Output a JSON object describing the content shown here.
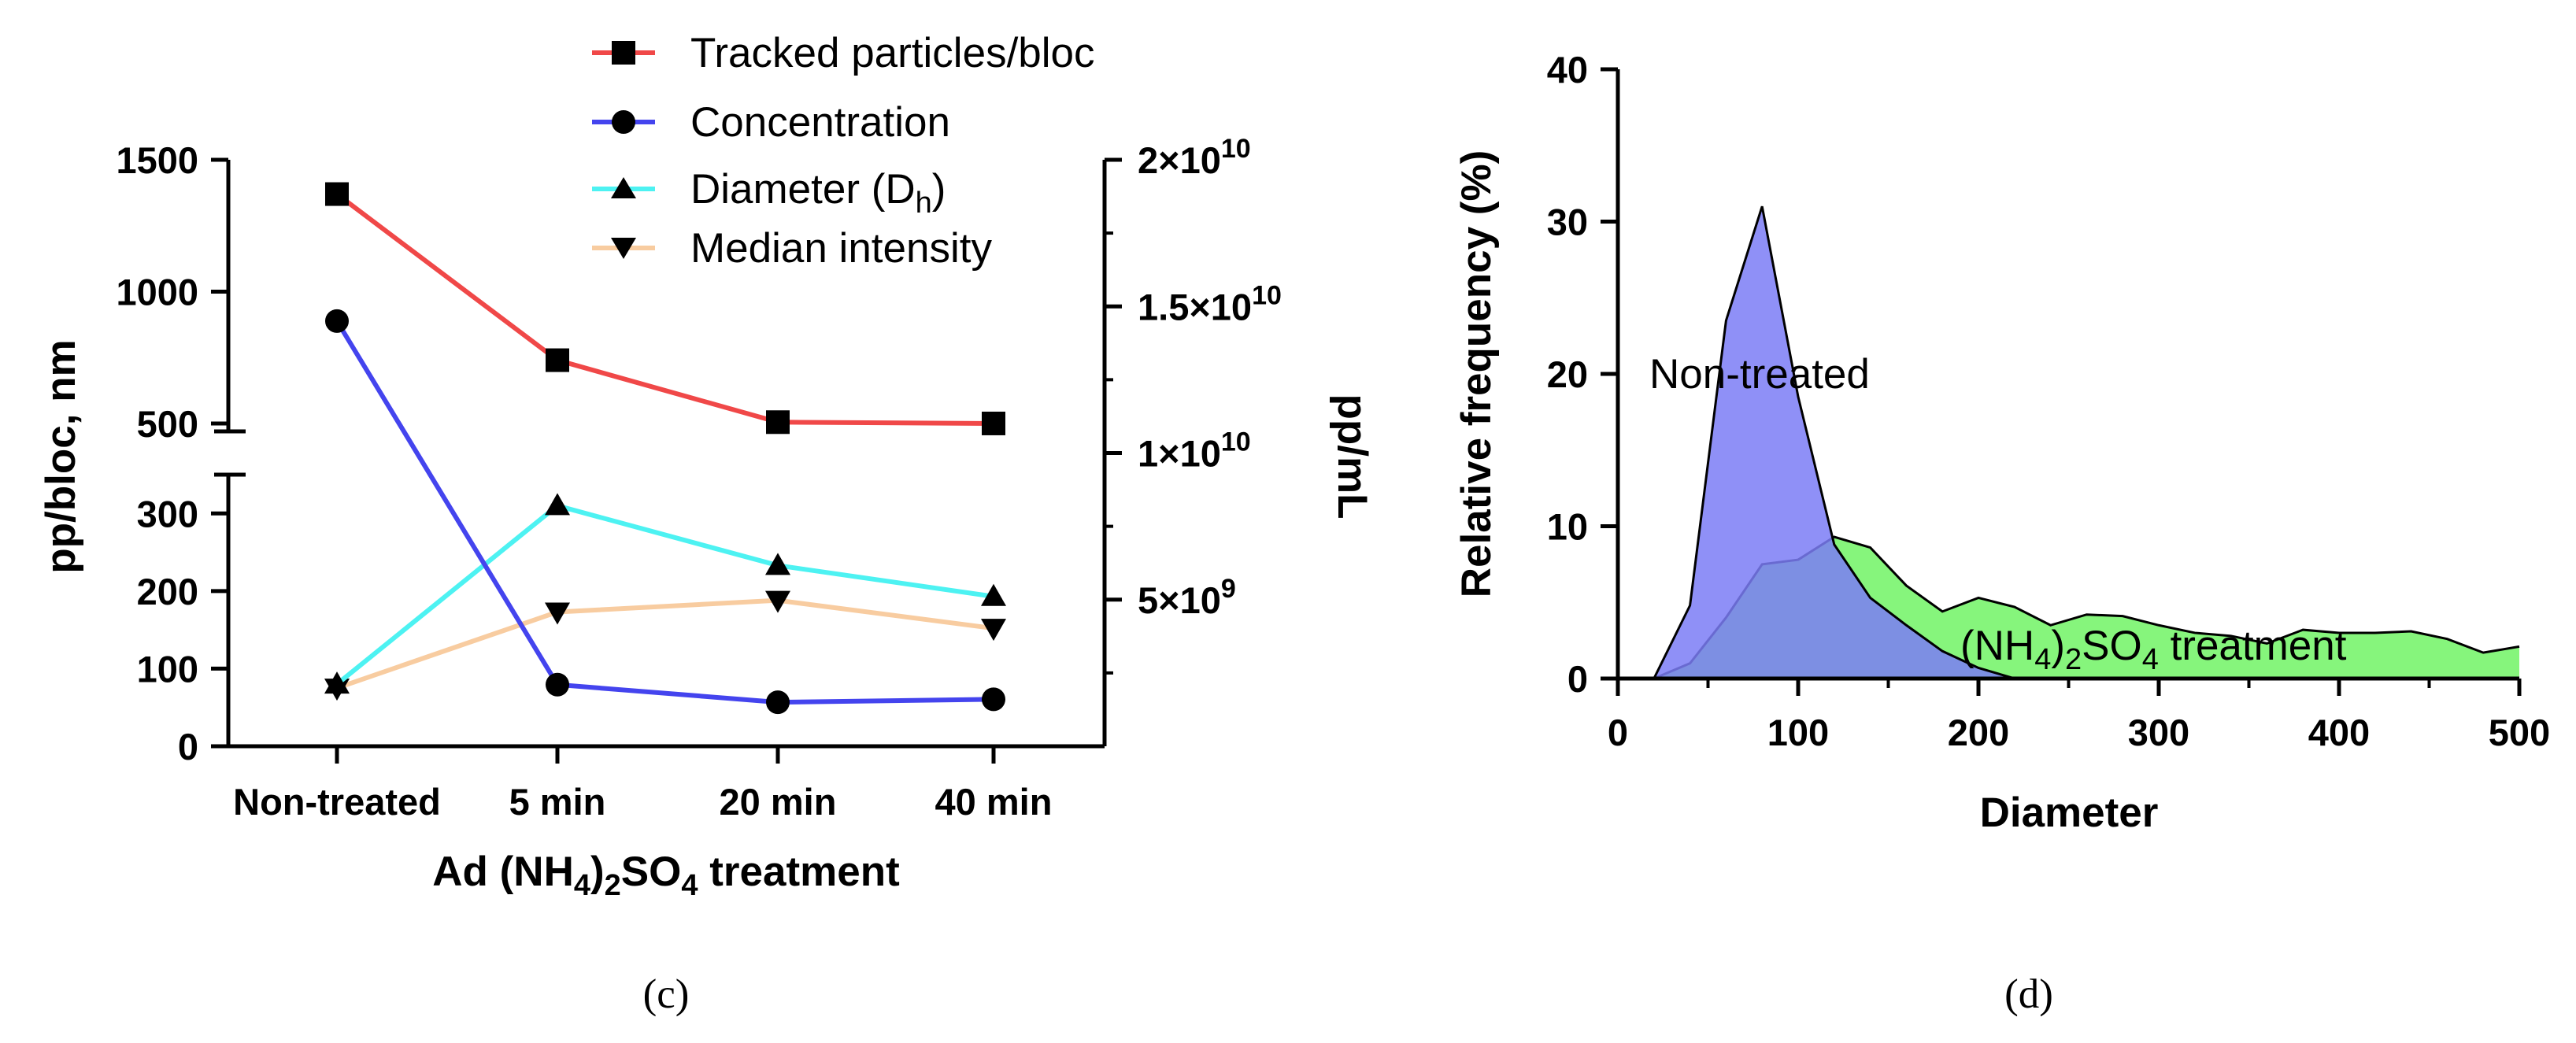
{
  "chart_data": [
    {
      "type": "line",
      "panel": "(c)",
      "categories": [
        "Non-treated",
        "5 min",
        "20 min",
        "40 min"
      ],
      "xlabel": "Ad (NH4)2SO4 treatment",
      "ylabel_left": "pp/bloc, nm",
      "ylabel_right": "pp/mL",
      "left_axis": {
        "broken": true,
        "lower_range": [
          0,
          350
        ],
        "lower_ticks": [
          "0",
          "100",
          "200",
          "300"
        ],
        "upper_range": [
          470,
          1500
        ],
        "upper_ticks": [
          "500",
          "1000",
          "1500"
        ]
      },
      "right_axis": {
        "range": [
          0,
          20000000000
        ],
        "tick_values": [
          5000000000,
          10000000000,
          15000000000,
          20000000000
        ],
        "tick_bases": [
          "5×10",
          "1×10",
          "1.5×10",
          "2×10"
        ],
        "tick_exponents": [
          "9",
          "10",
          "10",
          "10"
        ]
      },
      "series": [
        {
          "name": "Tracked particles/bloc",
          "axis": "left",
          "marker": "square",
          "color": "#f04848",
          "values": [
            1370,
            740,
            505,
            500
          ]
        },
        {
          "name": "Concentration",
          "axis": "right",
          "marker": "circle",
          "color": "#4444ee",
          "values": [
            14500000000,
            2100000000,
            1500000000,
            1600000000
          ]
        },
        {
          "name": "Diameter (Dh)",
          "label_main": "Diameter (D",
          "label_sub": "h",
          "label_end": ")",
          "axis": "left",
          "marker": "triangle-up",
          "color": "#4df2f2",
          "values": [
            80,
            310,
            233,
            193
          ]
        },
        {
          "name": "Median intensity",
          "axis": "left",
          "marker": "triangle-down",
          "color": "#f8cca0",
          "values": [
            75,
            173,
            188,
            152
          ]
        }
      ],
      "xlabel_parts": [
        "Ad (NH",
        "4",
        ")",
        "2",
        "SO",
        "4",
        " treatment"
      ]
    },
    {
      "type": "area",
      "panel": "(d)",
      "xlabel": "Diameter",
      "ylabel": "Relative frequency (%)",
      "xlim": [
        0,
        500
      ],
      "ylim": [
        0,
        40
      ],
      "x_ticks": [
        "0",
        "100",
        "200",
        "300",
        "400",
        "500"
      ],
      "y_ticks": [
        "0",
        "10",
        "20",
        "30",
        "40"
      ],
      "series": [
        {
          "name": "(NH4)2SO4 treatment",
          "color": "#86f57c",
          "x": [
            20,
            40,
            60,
            80,
            100,
            120,
            140,
            160,
            180,
            200,
            220,
            240,
            260,
            280,
            300,
            320,
            340,
            360,
            380,
            400,
            420,
            440,
            460,
            480,
            500
          ],
          "y": [
            0,
            1,
            4,
            7.5,
            7.8,
            9.3,
            8.6,
            6.1,
            4.4,
            5.3,
            4.7,
            3.5,
            4.2,
            4.1,
            3.5,
            3.0,
            2.8,
            2.3,
            3.2,
            3.0,
            3.0,
            3.1,
            2.6,
            1.7,
            2.1
          ]
        },
        {
          "name": "Non-treated",
          "color": "#7b7cf6",
          "x": [
            20,
            40,
            60,
            80,
            100,
            120,
            140,
            160,
            180,
            200,
            220
          ],
          "y": [
            0,
            4.8,
            23.5,
            31,
            18.5,
            8.8,
            5.3,
            3.5,
            1.8,
            0.7,
            0
          ]
        }
      ],
      "annotations": {
        "non_treated": "Non-treated",
        "treated_parts": [
          "(NH",
          "4",
          ")",
          "2",
          "SO",
          "4",
          " treatment"
        ]
      }
    }
  ],
  "panel_labels": {
    "c": "(c)",
    "d": "(d)"
  }
}
